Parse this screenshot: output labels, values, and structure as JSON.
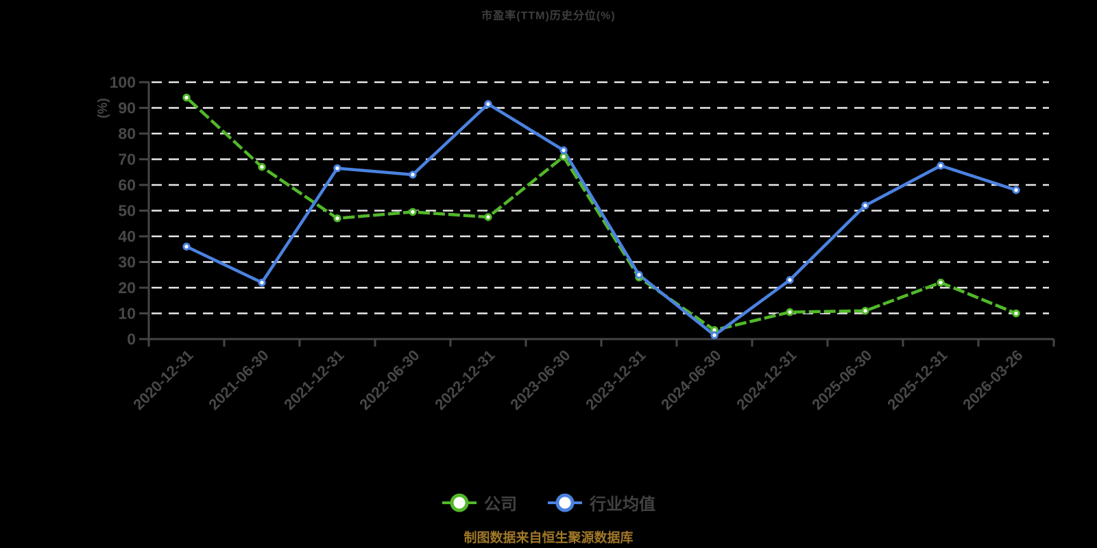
{
  "title": "市盈率(TTM)历史分位(%)",
  "footer_note": "制图数据来自恒生聚源数据库",
  "legend": [
    {
      "label": "公司"
    },
    {
      "label": "行业均值"
    }
  ],
  "colors": {
    "background": "#000000",
    "title_text": "#3e3e3e",
    "tick_text": "#484848",
    "axis": "#454545",
    "gridline": "#e9e9e9",
    "unit_label": "#e60012",
    "company_series": "#52b82a",
    "industry_series": "#4b82e1",
    "marker_fill": "#ffffff",
    "footer_text": "#a07828"
  },
  "chart_data": {
    "type": "line",
    "title": "市盈率(TTM)历史分位(%)",
    "xlabel": "",
    "ylabel": "(%)",
    "ylim": [
      0,
      100
    ],
    "y_ticks": [
      0,
      10,
      20,
      30,
      40,
      50,
      60,
      70,
      80,
      90,
      100
    ],
    "grid": "horizontal-dashed-white",
    "legend_position": "bottom",
    "categories": [
      "2020-12-31",
      "2021-06-30",
      "2021-12-31",
      "2022-06-30",
      "2022-12-31",
      "2023-06-30",
      "2023-12-31",
      "2024-06-30",
      "2024-12-31",
      "2025-06-30",
      "2025-12-31",
      "2026-03-26"
    ],
    "series": [
      {
        "name": "公司",
        "color": "#52b82a",
        "marker": "circle-white-fill",
        "line_style": "green-with-dark-dashes",
        "values": [
          94,
          67,
          47,
          49.5,
          47.5,
          71,
          24,
          3.5,
          10.5,
          11,
          22,
          10
        ]
      },
      {
        "name": "行业均值",
        "color": "#4b82e1",
        "marker": "circle-white-fill",
        "line_style": "solid",
        "values": [
          36,
          22,
          66.5,
          64,
          91.5,
          73.5,
          25,
          1.5,
          23,
          52,
          67.5,
          58
        ]
      }
    ]
  }
}
